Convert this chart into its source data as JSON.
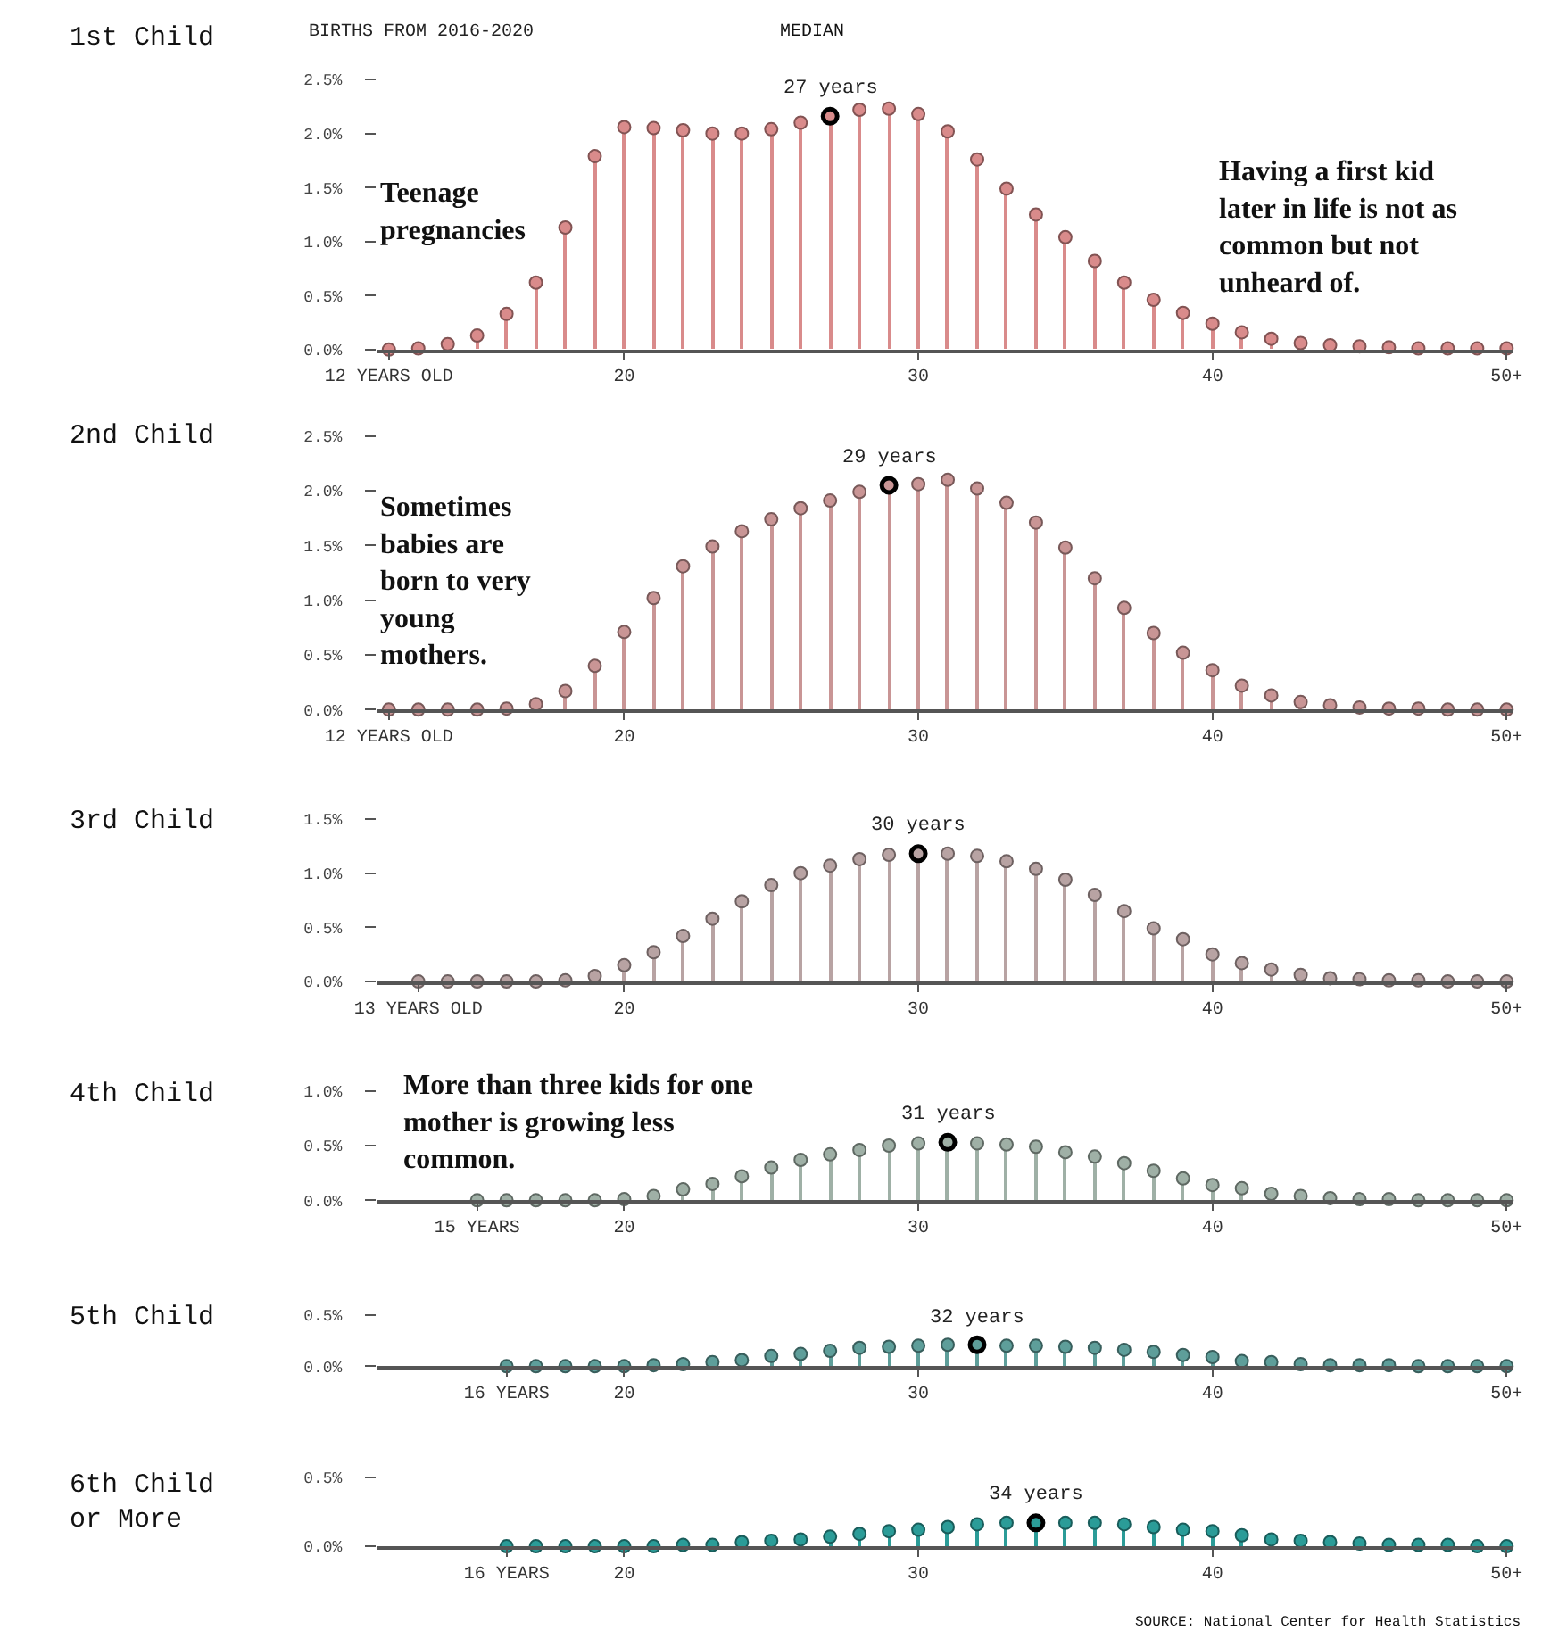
{
  "chart_data": [
    {
      "type": "lollipop",
      "title": "1st Child",
      "subtitle": "BIRTHS FROM 2016-2020",
      "marker": "circle",
      "x": [
        12,
        13,
        14,
        15,
        16,
        17,
        18,
        19,
        20,
        21,
        22,
        23,
        24,
        25,
        26,
        27,
        28,
        29,
        30,
        31,
        32,
        33,
        34,
        35,
        36,
        37,
        38,
        39,
        40,
        41,
        42,
        43,
        44,
        45,
        46,
        47,
        48,
        49,
        50
      ],
      "series": [
        {
          "color": "#d98b8b",
          "values": [
            0,
            0.01,
            0.05,
            0.13,
            0.33,
            0.62,
            1.13,
            1.79,
            2.06,
            2.05,
            2.03,
            2.0,
            2.0,
            2.04,
            2.1,
            2.16,
            2.22,
            2.23,
            2.18,
            2.02,
            1.76,
            1.49,
            1.25,
            1.04,
            0.82,
            0.62,
            0.46,
            0.34,
            0.24,
            0.16,
            0.1,
            0.06,
            0.04,
            0.03,
            0.02,
            0.01,
            0.01,
            0.01,
            0.01
          ]
        }
      ],
      "xlim": [
        11.6,
        50.2
      ],
      "xticks": [
        {
          "value": 12,
          "label": "12 YEARS OLD"
        },
        20,
        30,
        40,
        {
          "value": 50,
          "label": "50+"
        }
      ],
      "ylim": [
        0,
        2.5
      ],
      "yticks": [
        {
          "value": 0,
          "label": "0.0%"
        },
        {
          "value": 0.5,
          "label": "0.5%"
        },
        {
          "value": 1.0,
          "label": "1.0%"
        },
        {
          "value": 1.5,
          "label": "1.5%"
        },
        {
          "value": 2.0,
          "label": "2.0%"
        },
        {
          "value": 2.5,
          "label": "2.5%"
        }
      ],
      "annotations": [
        "MEDIAN",
        {
          "text": "27 years",
          "x": 27,
          "y": 2.16
        },
        "Teenage\npregnancies",
        "Having a first kid\nlater in life is not as\ncommon but not\nunheard of."
      ]
    },
    {
      "type": "lollipop",
      "title": "2nd Child",
      "marker": "circle",
      "x": [
        12,
        13,
        14,
        15,
        16,
        17,
        18,
        19,
        20,
        21,
        22,
        23,
        24,
        25,
        26,
        27,
        28,
        29,
        30,
        31,
        32,
        33,
        34,
        35,
        36,
        37,
        38,
        39,
        40,
        41,
        42,
        43,
        44,
        45,
        46,
        47,
        48,
        49,
        50
      ],
      "series": [
        {
          "color": "#c99595",
          "values": [
            0,
            0,
            0,
            0,
            0.01,
            0.05,
            0.17,
            0.4,
            0.71,
            1.02,
            1.31,
            1.49,
            1.63,
            1.74,
            1.84,
            1.91,
            1.99,
            2.05,
            2.06,
            2.1,
            2.02,
            1.89,
            1.71,
            1.48,
            1.2,
            0.93,
            0.7,
            0.52,
            0.36,
            0.22,
            0.13,
            0.07,
            0.04,
            0.02,
            0.01,
            0.01,
            0,
            0,
            0
          ]
        }
      ],
      "xlim": [
        11.6,
        50.2
      ],
      "xticks": [
        {
          "value": 12,
          "label": "12 YEARS OLD"
        },
        20,
        30,
        40,
        {
          "value": 50,
          "label": "50+"
        }
      ],
      "ylim": [
        0,
        2.5
      ],
      "yticks": [
        {
          "value": 0,
          "label": "0.0%"
        },
        {
          "value": 0.5,
          "label": "0.5%"
        },
        {
          "value": 1.0,
          "label": "1.0%"
        },
        {
          "value": 1.5,
          "label": "1.5%"
        },
        {
          "value": 2.0,
          "label": "2.0%"
        },
        {
          "value": 2.5,
          "label": "2.5%"
        }
      ],
      "annotations": [
        {
          "text": "29 years",
          "x": 29,
          "y": 2.05
        },
        "Sometimes\nbabies are\nborn to very\nyoung\nmothers."
      ]
    },
    {
      "type": "lollipop",
      "title": "3rd Child",
      "marker": "circle",
      "x": [
        13,
        14,
        15,
        16,
        17,
        18,
        19,
        20,
        21,
        22,
        23,
        24,
        25,
        26,
        27,
        28,
        29,
        30,
        31,
        32,
        33,
        34,
        35,
        36,
        37,
        38,
        39,
        40,
        41,
        42,
        43,
        44,
        45,
        46,
        47,
        48,
        49,
        50
      ],
      "series": [
        {
          "color": "#b8a3a3",
          "values": [
            0,
            0,
            0,
            0,
            0,
            0.01,
            0.05,
            0.15,
            0.27,
            0.42,
            0.58,
            0.74,
            0.89,
            1.0,
            1.07,
            1.13,
            1.17,
            1.18,
            1.18,
            1.16,
            1.11,
            1.04,
            0.94,
            0.8,
            0.65,
            0.49,
            0.39,
            0.25,
            0.17,
            0.11,
            0.06,
            0.03,
            0.02,
            0.01,
            0.01,
            0,
            0,
            0
          ]
        }
      ],
      "xlim": [
        11.6,
        50.2
      ],
      "xticks": [
        {
          "value": 13,
          "label": "13 YEARS OLD"
        },
        20,
        30,
        40,
        {
          "value": 50,
          "label": "50+"
        }
      ],
      "ylim": [
        0,
        1.5
      ],
      "yticks": [
        {
          "value": 0,
          "label": "0.0%"
        },
        {
          "value": 0.5,
          "label": "0.5%"
        },
        {
          "value": 1.0,
          "label": "1.0%"
        },
        {
          "value": 1.5,
          "label": "1.5%"
        }
      ],
      "annotations": [
        {
          "text": "30 years",
          "x": 30,
          "y": 1.18
        }
      ]
    },
    {
      "type": "lollipop",
      "title": "4th Child",
      "marker": "circle",
      "x": [
        15,
        16,
        17,
        18,
        19,
        20,
        21,
        22,
        23,
        24,
        25,
        26,
        27,
        28,
        29,
        30,
        31,
        32,
        33,
        34,
        35,
        36,
        37,
        38,
        39,
        40,
        41,
        42,
        43,
        44,
        45,
        46,
        47,
        48,
        49,
        50
      ],
      "series": [
        {
          "color": "#9fb0a6",
          "values": [
            0,
            0,
            0,
            0,
            0,
            0.01,
            0.04,
            0.1,
            0.15,
            0.22,
            0.3,
            0.37,
            0.42,
            0.46,
            0.5,
            0.52,
            0.53,
            0.52,
            0.51,
            0.49,
            0.44,
            0.4,
            0.34,
            0.27,
            0.2,
            0.14,
            0.11,
            0.06,
            0.04,
            0.02,
            0.01,
            0.01,
            0,
            0,
            0,
            0
          ]
        }
      ],
      "xlim": [
        11.6,
        50.2
      ],
      "xticks": [
        {
          "value": 15,
          "label": "15 YEARS"
        },
        20,
        30,
        40,
        {
          "value": 50,
          "label": "50+"
        }
      ],
      "ylim": [
        0,
        1.0
      ],
      "yticks": [
        {
          "value": 0,
          "label": "0.0%"
        },
        {
          "value": 0.5,
          "label": "0.5%"
        },
        {
          "value": 1.0,
          "label": "1.0%"
        }
      ],
      "annotations": [
        "More than three kids for one\nmother is growing less\ncommon.",
        {
          "text": "31 years",
          "x": 31,
          "y": 0.53
        }
      ]
    },
    {
      "type": "lollipop",
      "title": "5th Child",
      "marker": "circle",
      "x": [
        16,
        17,
        18,
        19,
        20,
        21,
        22,
        23,
        24,
        25,
        26,
        27,
        28,
        29,
        30,
        31,
        32,
        33,
        34,
        35,
        36,
        37,
        38,
        39,
        40,
        41,
        42,
        43,
        44,
        45,
        46,
        47,
        48,
        49,
        50
      ],
      "series": [
        {
          "color": "#5e9e9a",
          "values": [
            0,
            0,
            0,
            0,
            0,
            0.01,
            0.02,
            0.04,
            0.06,
            0.1,
            0.12,
            0.15,
            0.18,
            0.19,
            0.2,
            0.21,
            0.21,
            0.2,
            0.2,
            0.19,
            0.18,
            0.16,
            0.14,
            0.11,
            0.09,
            0.05,
            0.04,
            0.02,
            0.01,
            0.01,
            0.01,
            0,
            0,
            0,
            0
          ]
        }
      ],
      "xlim": [
        11.6,
        50.2
      ],
      "xticks": [
        {
          "value": 16,
          "label": "16 YEARS"
        },
        20,
        30,
        40,
        {
          "value": 50,
          "label": "50+"
        }
      ],
      "ylim": [
        0,
        0.5
      ],
      "yticks": [
        {
          "value": 0,
          "label": "0.0%"
        },
        {
          "value": 0.5,
          "label": "0.5%"
        }
      ],
      "annotations": [
        {
          "text": "32 years",
          "x": 32,
          "y": 0.21
        }
      ]
    },
    {
      "type": "lollipop",
      "title": "6th Child\nor More",
      "marker": "circle",
      "x": [
        16,
        17,
        18,
        19,
        20,
        21,
        22,
        23,
        24,
        25,
        26,
        27,
        28,
        29,
        30,
        31,
        32,
        33,
        34,
        35,
        36,
        37,
        38,
        39,
        40,
        41,
        42,
        43,
        44,
        45,
        46,
        47,
        48,
        49,
        50
      ],
      "series": [
        {
          "color": "#2b9c98",
          "values": [
            0,
            0,
            0,
            0,
            0,
            0,
            0.01,
            0.01,
            0.03,
            0.04,
            0.05,
            0.07,
            0.09,
            0.11,
            0.12,
            0.14,
            0.16,
            0.17,
            0.17,
            0.17,
            0.17,
            0.16,
            0.14,
            0.12,
            0.11,
            0.08,
            0.05,
            0.04,
            0.03,
            0.02,
            0.01,
            0.01,
            0.01,
            0,
            0
          ]
        }
      ],
      "xlim": [
        11.6,
        50.2
      ],
      "xticks": [
        {
          "value": 16,
          "label": "16 YEARS"
        },
        20,
        30,
        40,
        {
          "value": 50,
          "label": "50+"
        }
      ],
      "ylim": [
        0,
        0.5
      ],
      "yticks": [
        {
          "value": 0,
          "label": "0.0%"
        },
        {
          "value": 0.5,
          "label": "0.5%"
        }
      ],
      "annotations": [
        {
          "text": "34 years",
          "x": 34,
          "y": 0.17
        },
        "SOURCE: National Center for Health Statistics"
      ]
    }
  ]
}
